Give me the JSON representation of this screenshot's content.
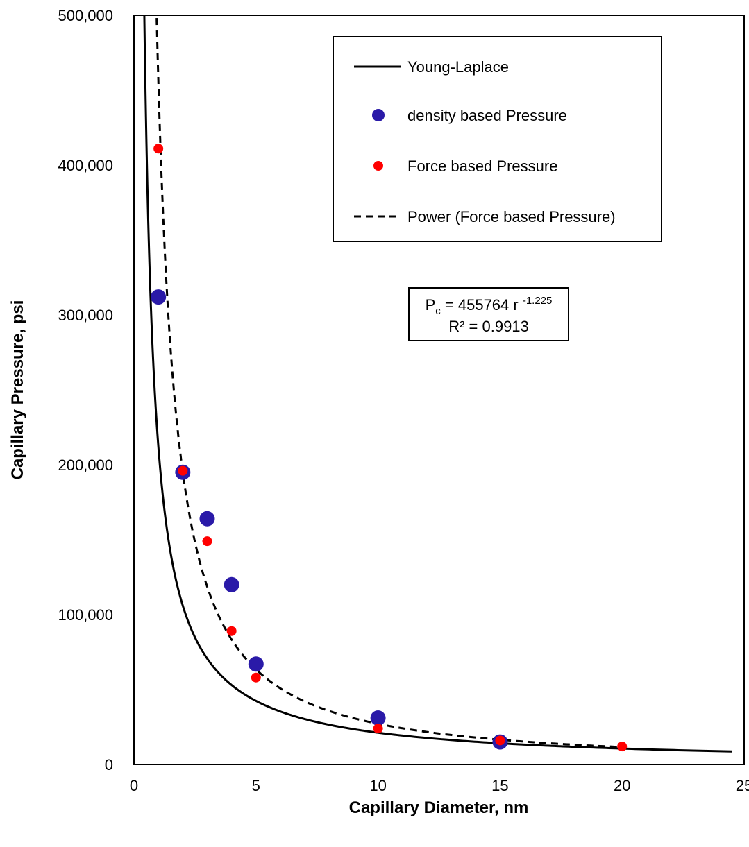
{
  "chart_data": {
    "type": "scatter",
    "xlabel": "Capillary Diameter, nm",
    "ylabel": "Capillary Pressure, psi",
    "xlim": [
      0,
      25
    ],
    "ylim": [
      0,
      500000
    ],
    "x_ticks": [
      0,
      5,
      10,
      15,
      20,
      25
    ],
    "y_ticks": [
      0,
      100000,
      200000,
      300000,
      400000,
      500000
    ],
    "x_tick_labels": [
      "0",
      "5",
      "10",
      "15",
      "20",
      "25"
    ],
    "y_tick_labels": [
      "0",
      "100,000",
      "200,000",
      "300,000",
      "400,000",
      "500,000"
    ],
    "grid": false,
    "legend_position": "top-right",
    "series": [
      {
        "name": "Young-Laplace",
        "kind": "line",
        "style": "solid",
        "color": "#000000",
        "formula": "P = 212000 / x",
        "x_range": [
          0.42,
          24.5
        ]
      },
      {
        "name": "density based Pressure",
        "kind": "scatter",
        "color": "#2a1aa8",
        "x": [
          1,
          2,
          3,
          4,
          5,
          10,
          15
        ],
        "y": [
          312000,
          195000,
          164000,
          120000,
          67000,
          31000,
          15000
        ]
      },
      {
        "name": "Force based Pressure",
        "kind": "scatter",
        "color": "#ff0000",
        "x": [
          1,
          2,
          3,
          4,
          5,
          10,
          15,
          20
        ],
        "y": [
          411000,
          196000,
          149000,
          89000,
          58000,
          24000,
          16000,
          12000
        ]
      },
      {
        "name": "Power (Force based Pressure)",
        "kind": "line",
        "style": "dashed",
        "color": "#000000",
        "formula": "P = 455764 * x^-1.225",
        "x_range": [
          0.93,
          20
        ]
      }
    ],
    "annotation": {
      "line1_base": "P",
      "line1_sub": "c",
      "line1_mid": " = 455764 r ",
      "line1_sup": "-1.225",
      "line2": "R² = 0.9913"
    }
  }
}
